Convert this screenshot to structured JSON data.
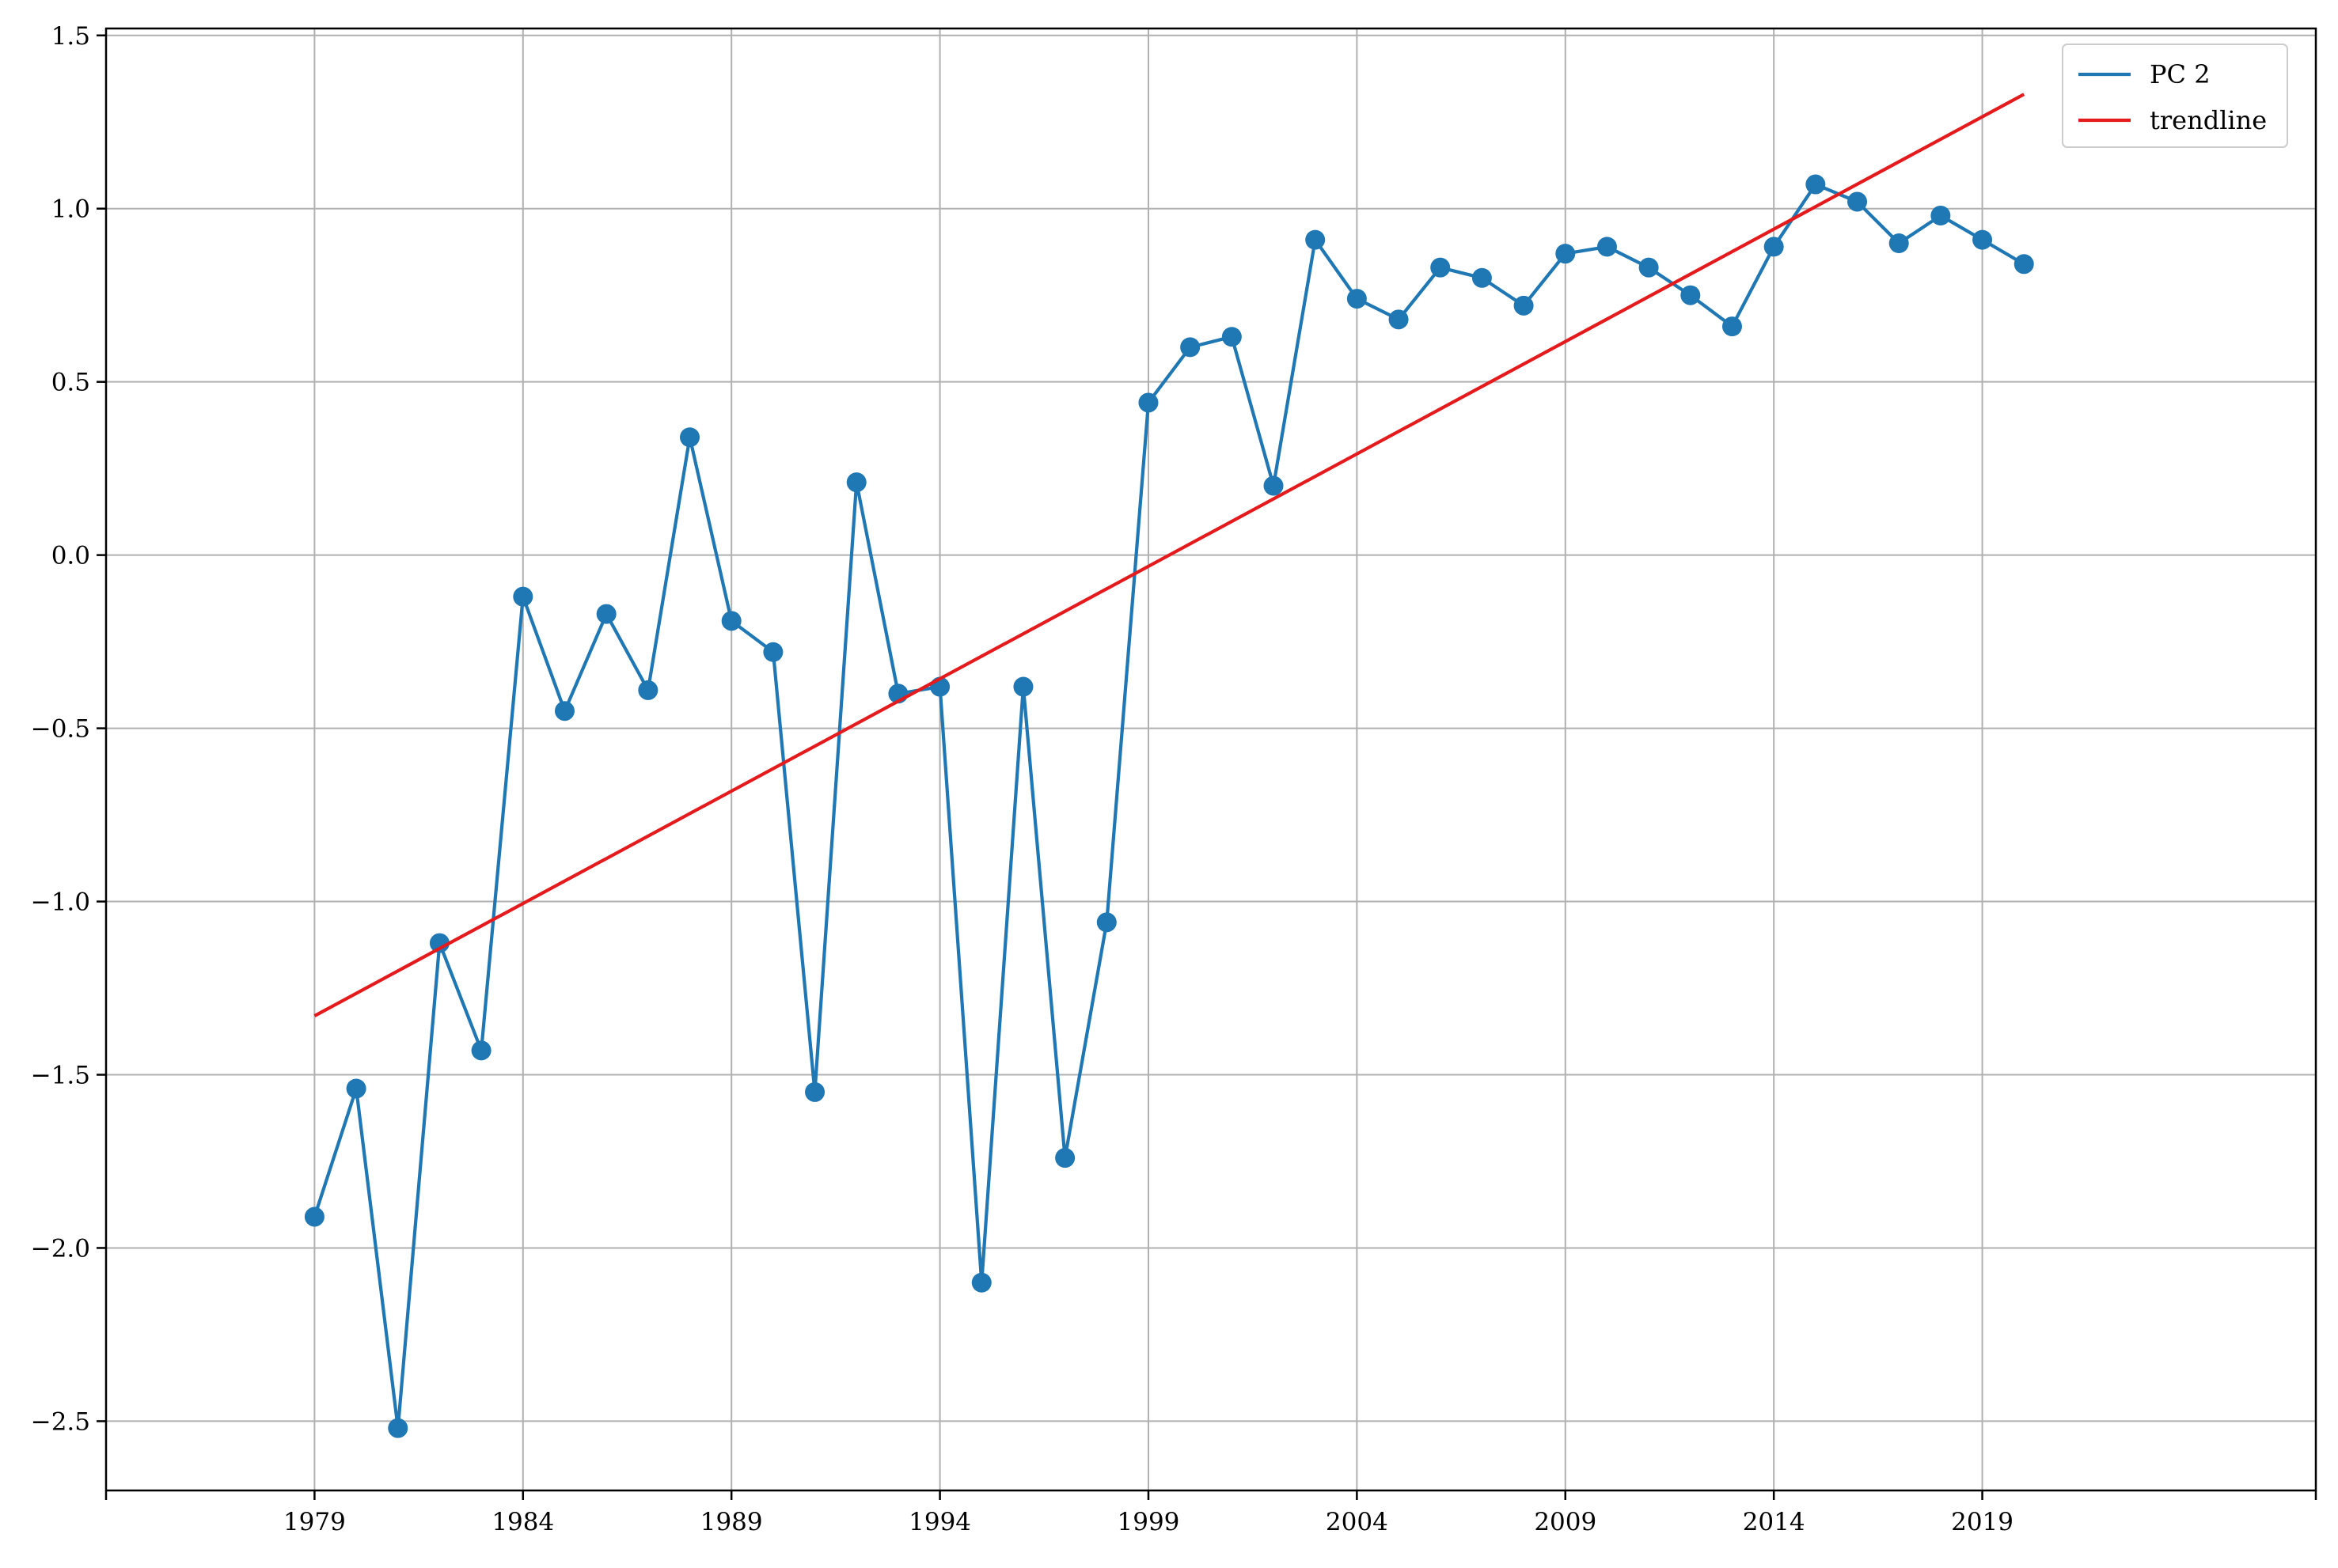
{
  "chart_data": {
    "type": "line",
    "title": "",
    "xlabel": "",
    "ylabel": "",
    "xlim": [
      1974,
      2027
    ],
    "ylim": [
      -2.7,
      1.52
    ],
    "x_ticks": [
      1979,
      1984,
      1989,
      1994,
      1999,
      2004,
      2009,
      2014,
      2019
    ],
    "x_tick_labels": [
      "1979",
      "1984",
      "1989",
      "1994",
      "1999",
      "2004",
      "2009",
      "2014",
      "2019"
    ],
    "x_minor_ticks": [
      1974,
      2027
    ],
    "y_ticks": [
      -2.5,
      -2.0,
      -1.5,
      -1.0,
      -0.5,
      0.0,
      0.5,
      1.0,
      1.5
    ],
    "y_tick_labels": [
      "−2.5",
      "−2.0",
      "−1.5",
      "−1.0",
      "−0.5",
      "0.0",
      "0.5",
      "1.0",
      "1.5"
    ],
    "grid": true,
    "legend_position": "top-right",
    "series": [
      {
        "name": "PC 2",
        "color": "#1f77b4",
        "marker": "circle",
        "x": [
          1979,
          1980,
          1981,
          1982,
          1983,
          1984,
          1985,
          1986,
          1987,
          1988,
          1989,
          1990,
          1991,
          1992,
          1993,
          1994,
          1995,
          1996,
          1997,
          1998,
          1999,
          2000,
          2001,
          2002,
          2003,
          2004,
          2005,
          2006,
          2007,
          2008,
          2009,
          2010,
          2011,
          2012,
          2013,
          2014,
          2015,
          2016,
          2017,
          2018,
          2019,
          2020
        ],
        "y": [
          -1.91,
          -1.54,
          -2.52,
          -1.12,
          -1.43,
          -0.12,
          -0.45,
          -0.17,
          -0.39,
          0.34,
          -0.19,
          -0.28,
          -1.55,
          0.21,
          -0.4,
          -0.38,
          -2.1,
          -0.38,
          -1.74,
          -1.06,
          0.44,
          0.6,
          0.63,
          0.2,
          0.91,
          0.74,
          0.68,
          0.83,
          0.8,
          0.72,
          0.87,
          0.89,
          0.83,
          0.75,
          0.66,
          0.89,
          1.07,
          1.02,
          0.9,
          0.98,
          0.91,
          0.84
        ]
      },
      {
        "name": "trendline",
        "color": "#e41a1c",
        "marker": "none",
        "x": [
          1979,
          2020
        ],
        "y": [
          -1.33,
          1.33
        ]
      }
    ]
  }
}
